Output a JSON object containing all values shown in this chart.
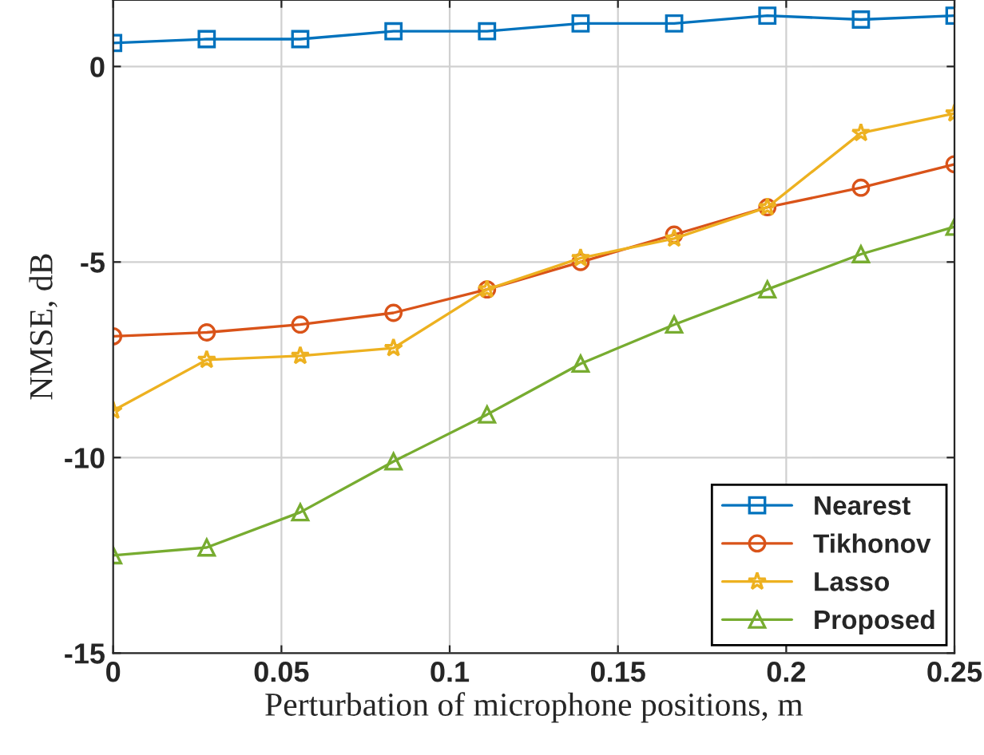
{
  "chart_data": {
    "type": "line",
    "xlabel": "Perturbation of microphone positions, m",
    "ylabel": "NMSE, dB",
    "x": [
      0,
      0.0278,
      0.0556,
      0.0833,
      0.1111,
      0.1389,
      0.1667,
      0.1944,
      0.2222,
      0.25
    ],
    "series": [
      {
        "name": "Nearest",
        "color": "#0072bd",
        "marker": "square",
        "values": [
          0.6,
          0.7,
          0.7,
          0.9,
          0.9,
          1.1,
          1.1,
          1.3,
          1.2,
          1.3
        ]
      },
      {
        "name": "Tikhonov",
        "color": "#d95319",
        "marker": "circle",
        "values": [
          -6.9,
          -6.8,
          -6.6,
          -6.3,
          -5.7,
          -5.0,
          -4.3,
          -3.6,
          -3.1,
          -2.5
        ]
      },
      {
        "name": "Lasso",
        "color": "#edb120",
        "marker": "star",
        "values": [
          -8.8,
          -7.5,
          -7.4,
          -7.2,
          -5.7,
          -4.9,
          -4.4,
          -3.6,
          -1.7,
          -1.2
        ]
      },
      {
        "name": "Proposed",
        "color": "#77ac30",
        "marker": "triangle",
        "values": [
          -12.5,
          -12.3,
          -11.4,
          -10.1,
          -8.9,
          -7.6,
          -6.6,
          -5.7,
          -4.8,
          -4.1
        ]
      }
    ],
    "xlim": [
      0,
      0.25
    ],
    "xticks": [
      0,
      0.05,
      0.1,
      0.15,
      0.2,
      0.25
    ],
    "ylim": [
      -15,
      1.7
    ],
    "yticks": [
      {
        "value": -15,
        "label": "-15"
      },
      {
        "value": -10,
        "label": "-10"
      },
      {
        "value": -5,
        "label": "-5"
      },
      0
    ],
    "grid": true,
    "legend": "bottom right",
    "line_style": "solid"
  }
}
